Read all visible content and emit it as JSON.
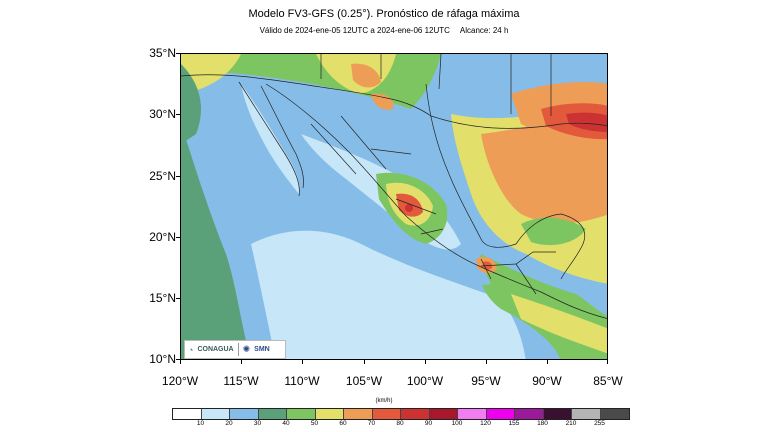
{
  "header": {
    "title": "Modelo FV3-GFS (0.25°). Pronóstico de ráfaga máxima",
    "validity": "Válido de 2024-ene-05 12UTC a 2024-ene-06 12UTC",
    "range": "Alcance: 24 h"
  },
  "axes": {
    "lat_labels": [
      "35°N",
      "30°N",
      "25°N",
      "20°N",
      "15°N",
      "10°N"
    ],
    "lon_labels": [
      "120°W",
      "115°W",
      "110°W",
      "105°W",
      "100°W",
      "95°W",
      "90°W",
      "85°W"
    ]
  },
  "logos": {
    "conagua": "CONAGUA",
    "smn": "SMN"
  },
  "colorbar": {
    "units": "(km/h)",
    "labels": [
      "10",
      "20",
      "30",
      "40",
      "50",
      "60",
      "70",
      "80",
      "90",
      "100",
      "120",
      "155",
      "180",
      "210",
      "255"
    ],
    "colors": [
      "#ffffff",
      "#c7e6f8",
      "#86bde8",
      "#5aa17a",
      "#7cc560",
      "#e2e06a",
      "#ee9d56",
      "#e2593c",
      "#cc3232",
      "#a8182c",
      "#f07ef0",
      "#ee00ee",
      "#9a1a9a",
      "#3a1030",
      "#b4b4b4",
      "#4a4a4a"
    ]
  },
  "map_colors": {
    "ocean_light": "#c7e6f8",
    "ocean_mid": "#86bde8",
    "ocean_green": "#5aa17a",
    "land_green": "#7cc560",
    "land_yellow": "#e2e06a",
    "land_orange": "#ee9d56",
    "land_red": "#e2593c",
    "land_darkred": "#cc3232"
  }
}
